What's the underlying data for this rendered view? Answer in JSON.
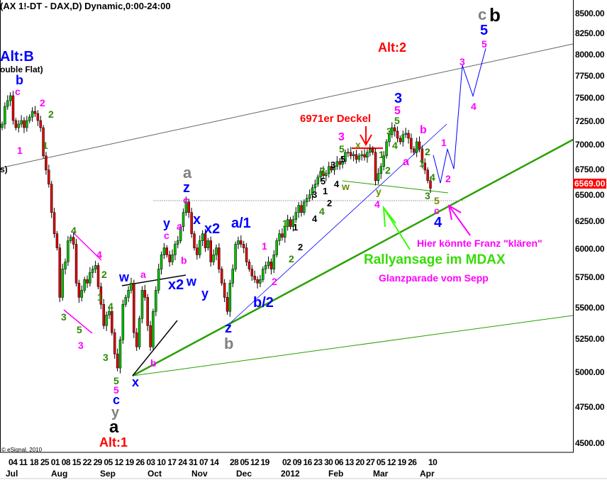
{
  "header": {
    "title": "(AX 1!-DT - DAX,D) Dynamic,0:00-24:00"
  },
  "copyright": "© eSignal, 2010",
  "last_price": "6569.00",
  "colors": {
    "up": "#00c000",
    "down": "#e00000",
    "wave_blue": "#0000ff",
    "wave_magenta": "#ff00ff",
    "wave_green": "#2a8a00",
    "alt_red": "#ff0000",
    "trend_green": "#2aa000",
    "channel_grey": "#606860",
    "price_box": "#ff0000"
  },
  "chart_data": {
    "type": "candlestick",
    "yscale": "log",
    "ylim": [
      4500,
      8500
    ],
    "y_ticks": [
      "4500.00",
      "4750.00",
      "5000.00",
      "5250.00",
      "5500.00",
      "5750.00",
      "6000.00",
      "6250.00",
      "6500.00",
      "6750.00",
      "7000.00",
      "7250.00",
      "7500.00",
      "7750.00",
      "8000.00",
      "8250.00",
      "8500.00"
    ],
    "x_day_ticks": [
      [
        "04",
        "11",
        "18",
        "25",
        "01",
        "08",
        "15",
        "22",
        "29",
        "05",
        "12",
        "19",
        "26",
        "03",
        "10",
        "17",
        "24",
        "31",
        "07",
        "14"
      ],
      [
        "28",
        "05",
        "12",
        "19"
      ],
      [
        "02",
        "09",
        "16",
        "23",
        "30",
        "06",
        "13",
        "20",
        "27",
        "05",
        "12",
        "19",
        "26"
      ],
      [
        "10"
      ]
    ],
    "x_month_ticks": [
      "Jul",
      "Aug",
      "Sep",
      "Oct",
      "Nov",
      "Dec",
      "2012",
      "Feb",
      "Mar",
      "Apr"
    ],
    "close": [
      7224,
      7416,
      7479,
      7534,
      7262,
      7186,
      7224,
      7262,
      7186,
      7262,
      7300,
      7362,
      7338,
      7262,
      7186,
      6892,
      6749,
      6609,
      6338,
      6142,
      6015,
      5590,
      5829,
      5891,
      6079,
      6110,
      6047,
      5709,
      5590,
      5649,
      5739,
      5709,
      5799,
      5829,
      5860,
      5679,
      5532,
      5361,
      5446,
      5475,
      5305,
      5141,
      5035,
      5250,
      5532,
      5590,
      5649,
      5709,
      5305,
      5195,
      5418,
      5649,
      5590,
      5361,
      5195,
      5475,
      5649,
      5829,
      5953,
      6015,
      5953,
      5891,
      5953,
      6047,
      6079,
      6207,
      6338,
      6438,
      6338,
      6142,
      6015,
      5953,
      6079,
      6142,
      6015,
      6079,
      5891,
      5953,
      6015,
      5829,
      5709,
      5590,
      5475,
      5709,
      5829,
      6047,
      6079,
      6047,
      6015,
      5891,
      5829,
      5769,
      5739,
      5709,
      5739,
      5829,
      5860,
      5891,
      5829,
      5953,
      6079,
      6142,
      6110,
      6207,
      6272,
      6207,
      6272,
      6338,
      6405,
      6338,
      6438,
      6472,
      6506,
      6574,
      6609,
      6679,
      6735,
      6693,
      6714,
      6785,
      6749,
      6785,
      6835,
      6806,
      6835,
      6928,
      6928,
      6892,
      6906,
      6856,
      6892,
      6906,
      6878,
      6928,
      6964,
      6928,
      6644,
      6714,
      6785,
      6892,
      7037,
      7112,
      7186,
      7149,
      7074,
      7037,
      7112,
      7127,
      7074,
      6964,
      6928,
      7037,
      6964,
      6820,
      6749,
      6644,
      6569
    ],
    "projection": [
      6900,
      6620,
      6960,
      6760,
      7880,
      7530,
      8080
    ],
    "annotations": [
      {
        "text": "Alt:B",
        "color": "#0000ff"
      },
      {
        "text": "ouble Flat)",
        "color": "#000000"
      },
      {
        "text": "b",
        "color": "#0000ff"
      },
      {
        "text": "c",
        "color": "#ff00ff"
      },
      {
        "text": "1",
        "color": "#ff00ff"
      },
      {
        "text": "2",
        "color": "#ff00ff"
      },
      {
        "text": "2",
        "color": "#2a8a00"
      },
      {
        "text": "1",
        "color": "#2a8a00"
      },
      {
        "text": "s)",
        "color": "#000000"
      },
      {
        "text": "4",
        "color": "#2a8a00"
      },
      {
        "text": "4",
        "color": "#ff00ff"
      },
      {
        "text": "2",
        "color": "#2a8a00"
      },
      {
        "text": "1",
        "color": "#2a8a00"
      },
      {
        "text": "3",
        "color": "#2a8a00"
      },
      {
        "text": "5",
        "color": "#2a8a00"
      },
      {
        "text": "3",
        "color": "#ff00ff"
      },
      {
        "text": "4",
        "color": "#2a8a00"
      },
      {
        "text": "3",
        "color": "#2a8a00"
      },
      {
        "text": "5",
        "color": "#2a8a00"
      },
      {
        "text": "5",
        "color": "#ff00ff"
      },
      {
        "text": "c",
        "color": "#0000ff"
      },
      {
        "text": "y",
        "color": "#808080"
      },
      {
        "text": "a",
        "color": "#000000"
      },
      {
        "text": "Alt:1",
        "color": "#ff0000"
      },
      {
        "text": "x",
        "color": "#0000ff"
      },
      {
        "text": "b",
        "color": "#ff00ff"
      },
      {
        "text": "w",
        "color": "#0000ff"
      },
      {
        "text": "a",
        "color": "#ff00ff"
      },
      {
        "text": "y",
        "color": "#0000ff"
      },
      {
        "text": "c",
        "color": "#ff00ff"
      },
      {
        "text": "a",
        "color": "#ff00ff"
      },
      {
        "text": "b",
        "color": "#ff00ff"
      },
      {
        "text": "x2",
        "color": "#0000ff"
      },
      {
        "text": "w",
        "color": "#0000ff"
      },
      {
        "text": "y",
        "color": "#0000ff"
      },
      {
        "text": "a",
        "color": "#808080"
      },
      {
        "text": "z",
        "color": "#0000ff"
      },
      {
        "text": "c",
        "color": "#ff00ff"
      },
      {
        "text": "x",
        "color": "#0000ff"
      },
      {
        "text": "x2",
        "color": "#0000ff"
      },
      {
        "text": "a/1",
        "color": "#0000ff"
      },
      {
        "text": "z",
        "color": "#0000ff"
      },
      {
        "text": "b",
        "color": "#808080"
      },
      {
        "text": "b/2",
        "color": "#0000ff"
      },
      {
        "text": "1",
        "color": "#ff00ff"
      },
      {
        "text": "2",
        "color": "#ff00ff"
      },
      {
        "text": "1",
        "color": "#2a8a00"
      },
      {
        "text": "2",
        "color": "#2a8a00"
      },
      {
        "text": "1",
        "color": "#000000"
      },
      {
        "text": "2",
        "color": "#000000"
      },
      {
        "text": "3",
        "color": "#000000"
      },
      {
        "text": "1",
        "color": "#000000"
      },
      {
        "text": "2",
        "color": "#000000"
      },
      {
        "text": "4",
        "color": "#2a8a00"
      },
      {
        "text": "4",
        "color": "#000000"
      },
      {
        "text": "5",
        "color": "#000000"
      },
      {
        "text": "3",
        "color": "#2a8a00"
      },
      {
        "text": "4",
        "color": "#000000"
      },
      {
        "text": "w",
        "color": "#6b8e00"
      },
      {
        "text": "3",
        "color": "#000000"
      },
      {
        "text": "5",
        "color": "#000000"
      },
      {
        "text": "5",
        "color": "#2a8a00"
      },
      {
        "text": "3",
        "color": "#ff00ff"
      },
      {
        "text": "6971er Deckel",
        "color": "#ff0000"
      },
      {
        "text": "x",
        "color": "#6b8e00"
      },
      {
        "text": "1",
        "color": "#2a8a00"
      },
      {
        "text": "2",
        "color": "#2a8a00"
      },
      {
        "text": "y",
        "color": "#6b8e00"
      },
      {
        "text": "4",
        "color": "#ff00ff"
      },
      {
        "text": "3",
        "color": "#2a8a00"
      },
      {
        "text": "4",
        "color": "#2a8a00"
      },
      {
        "text": "5",
        "color": "#2a8a00"
      },
      {
        "text": "5",
        "color": "#ff00ff"
      },
      {
        "text": "3",
        "color": "#0000ff"
      },
      {
        "text": "a",
        "color": "#ff00ff"
      },
      {
        "text": "b",
        "color": "#ff00ff"
      },
      {
        "text": "2",
        "color": "#2a8a00"
      },
      {
        "text": "1",
        "color": "#2a8a00"
      },
      {
        "text": "4",
        "color": "#2a8a00"
      },
      {
        "text": "3",
        "color": "#2a8a00"
      },
      {
        "text": "5",
        "color": "#6b8e00"
      },
      {
        "text": "c",
        "color": "#ff00ff"
      },
      {
        "text": "4",
        "color": "#0000ff"
      },
      {
        "text": "1",
        "color": "#ff00ff"
      },
      {
        "text": "2",
        "color": "#ff00ff"
      },
      {
        "text": "3",
        "color": "#ff00ff"
      },
      {
        "text": "4",
        "color": "#ff00ff"
      },
      {
        "text": "5",
        "color": "#ff00ff"
      },
      {
        "text": "5",
        "color": "#0000ff"
      },
      {
        "text": "c",
        "color": "#808080"
      },
      {
        "text": "b",
        "color": "#000000"
      },
      {
        "text": "Alt:2",
        "color": "#ff0000"
      },
      {
        "text": "Hier könnte Franz \"klären\"",
        "color": "#ff00ff"
      },
      {
        "text": "Rallyansage im MDAX",
        "color": "#33dd00"
      },
      {
        "text": "Glanzparade vom Sepp",
        "color": "#ff00ff"
      }
    ]
  }
}
